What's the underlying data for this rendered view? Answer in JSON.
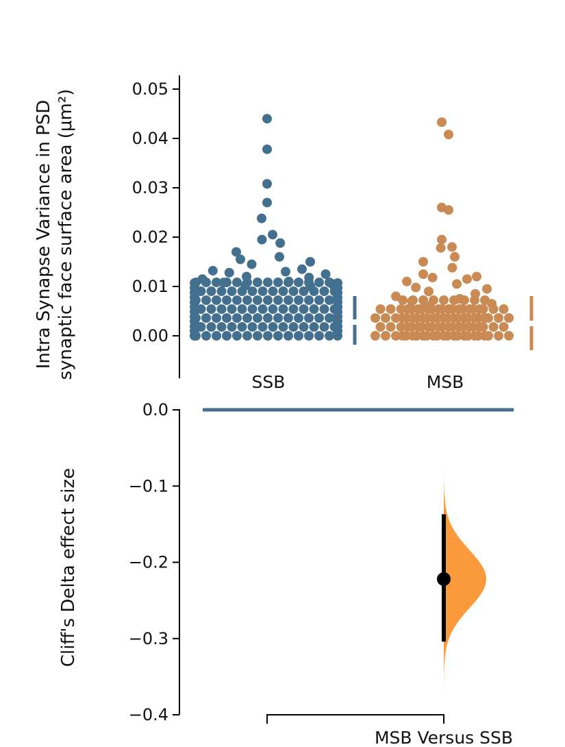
{
  "colors": {
    "ssb": "#44708f",
    "msb": "#c98a54",
    "delta_dist": "#fa9a3c",
    "axis": "#000000"
  },
  "chart_data": [
    {
      "type": "scatter",
      "subtype": "swarm",
      "ylabel_line1": "Intra Synapse Variance in PSD",
      "ylabel_line2": "synaptic face surface area (μm²)",
      "ylim": [
        0.0,
        0.05
      ],
      "yticks": [
        "0.00",
        "0.01",
        "0.02",
        "0.03",
        "0.04",
        "0.05"
      ],
      "categories": [
        "SSB",
        "MSB"
      ],
      "series": [
        {
          "name": "SSB",
          "values": [
            0.044,
            0.0378,
            0.0308,
            0.027,
            0.0238,
            0.0205,
            0.0195,
            0.0188,
            0.017,
            0.016,
            0.0155,
            0.015,
            0.0145,
            0.0135,
            0.0132,
            0.013,
            0.0128,
            0.0125,
            0.012,
            0.0118,
            0.0115,
            0.011,
            0.0108,
            0.0105,
            0.0102,
            0.01
          ]
        },
        {
          "name": "MSB",
          "values": [
            0.0433,
            0.0408,
            0.026,
            0.0255,
            0.0195,
            0.018,
            0.0178,
            0.016,
            0.015,
            0.0138,
            0.0125,
            0.012,
            0.0118,
            0.0115,
            0.011,
            0.0105,
            0.0098,
            0.0095,
            0.009,
            0.0085,
            0.008,
            0.0075,
            0.007,
            0.0065,
            0.006
          ]
        }
      ],
      "grid": false
    },
    {
      "type": "scatter",
      "subtype": "effect-size",
      "ylabel": "Cliff's Delta effect size",
      "ylim": [
        -0.4,
        0.0
      ],
      "yticks": [
        "0.0",
        "−0.1",
        "−0.2",
        "−0.3",
        "−0.4"
      ],
      "comparison_label": "MSB Versus SSB",
      "effect": -0.222,
      "ci": [
        -0.304,
        -0.137
      ],
      "distribution_range": [
        -0.37,
        -0.075
      ],
      "reference_line": 0.0
    }
  ]
}
